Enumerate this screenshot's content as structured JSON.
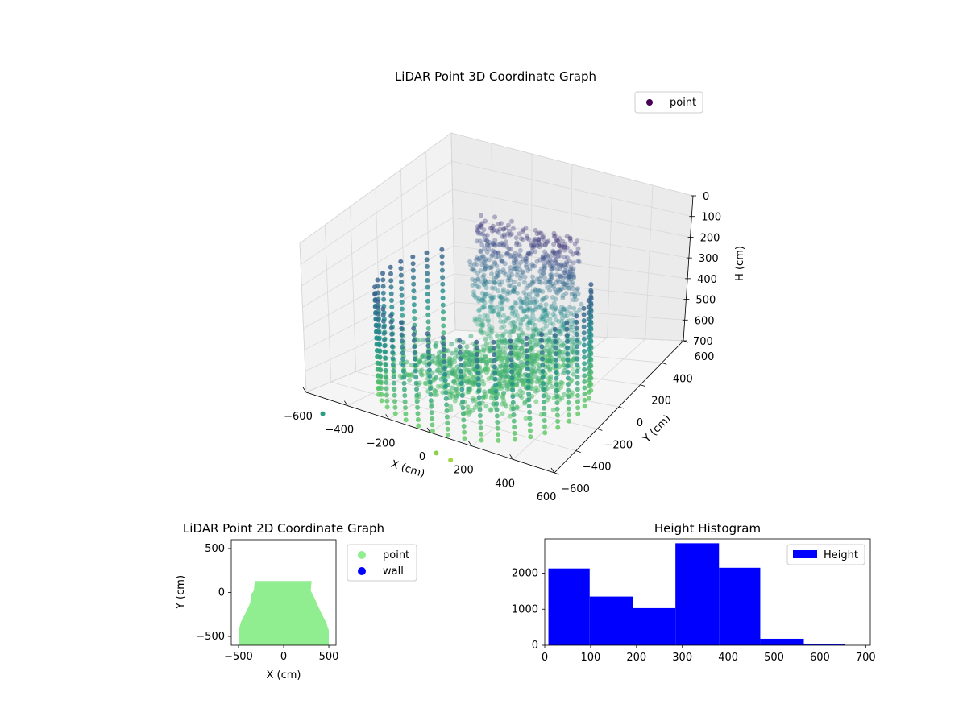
{
  "chart_data": [
    {
      "type": "scatter",
      "title": "LiDAR Point 3D Coordinate Graph",
      "xlabel": "X (cm)",
      "ylabel": "Y (cm)",
      "zlabel": "H (cm)",
      "xlim": [
        -600,
        600
      ],
      "ylim": [
        -600,
        600
      ],
      "zlim": [
        700,
        0
      ],
      "x_ticks": [
        "−600",
        "−400",
        "−200",
        "0",
        "200",
        "400",
        "600"
      ],
      "y_ticks": [
        "−600",
        "−400",
        "−200",
        "0",
        "200",
        "400",
        "600"
      ],
      "z_ticks": [
        "0",
        "100",
        "200",
        "300",
        "400",
        "500",
        "600",
        "700"
      ],
      "legend": [
        "point"
      ],
      "legend_position": "top-right",
      "colormap": [
        "#440154",
        "#3b528b",
        "#21918c",
        "#5ec962",
        "#fde725"
      ],
      "wall_radius_cm": 460,
      "wall_y_range": [
        -600,
        170
      ],
      "wall_height_range": [
        0,
        450
      ],
      "back_wall_height_range": [
        0,
        700
      ],
      "grid": true
    },
    {
      "type": "scatter",
      "title": "LiDAR Point 2D Coordinate Graph",
      "xlabel": "X (cm)",
      "ylabel": "Y (cm)",
      "xlim": [
        -580,
        580
      ],
      "ylim": [
        -600,
        600
      ],
      "x_ticks": [
        "−500",
        "0",
        "500"
      ],
      "y_ticks": [
        "−500",
        "0",
        "500"
      ],
      "series": [
        {
          "name": "point",
          "color": "#90ee90"
        },
        {
          "name": "wall",
          "color": "#0000ff"
        }
      ],
      "legend_position": "outside-right"
    },
    {
      "type": "bar",
      "title": "Height Histogram",
      "xlabel": "",
      "ylabel": "",
      "bin_edges": [
        8,
        98,
        193,
        285,
        380,
        470,
        565,
        655
      ],
      "values": [
        2130,
        1350,
        1030,
        2830,
        2150,
        180,
        40
      ],
      "xlim": [
        0,
        710
      ],
      "ylim": [
        0,
        2950
      ],
      "x_ticks": [
        0,
        100,
        200,
        300,
        400,
        500,
        600,
        700
      ],
      "y_ticks": [
        0,
        1000,
        2000
      ],
      "color": "#0000ff",
      "series": [
        {
          "name": "Height"
        }
      ],
      "legend_position": "top-right"
    }
  ]
}
